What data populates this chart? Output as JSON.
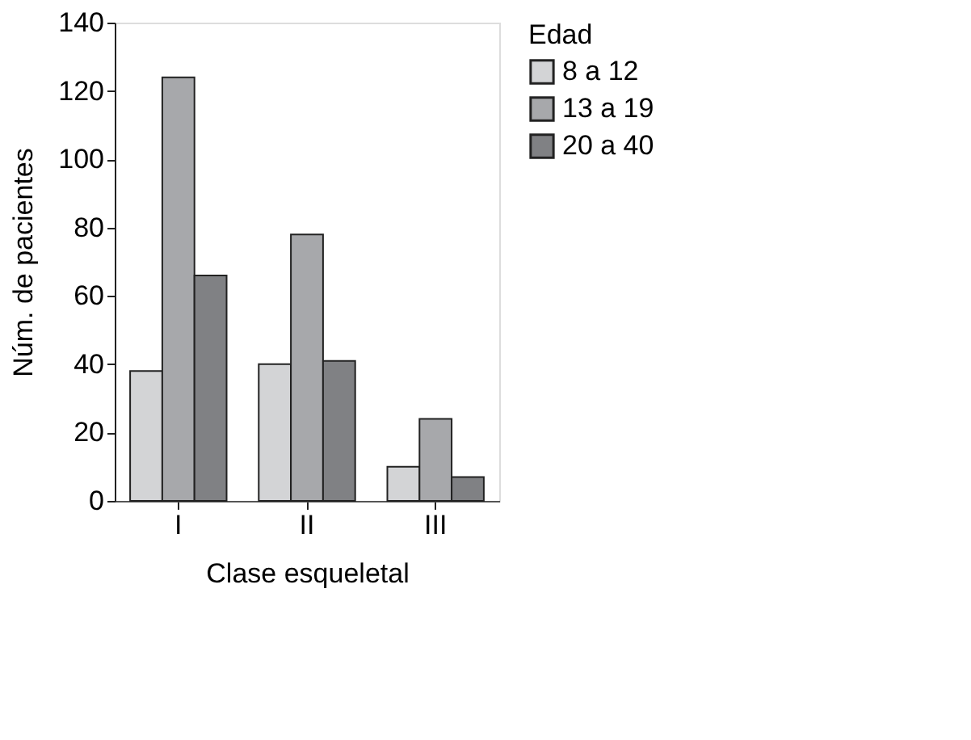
{
  "chart_data": {
    "type": "bar",
    "xlabel": "Clase esqueletal",
    "ylabel": "Núm. de pacientes",
    "legend_title": "Edad",
    "legend": "right",
    "categories": [
      "I",
      "II",
      "III"
    ],
    "series": [
      {
        "name": "8 a 12",
        "color": "#d3d4d6",
        "values": [
          38,
          40,
          10
        ]
      },
      {
        "name": "13 a 19",
        "color": "#a7a8ab",
        "values": [
          124,
          78,
          24
        ]
      },
      {
        "name": "20 a 40",
        "color": "#808184",
        "values": [
          66,
          41,
          7
        ]
      }
    ],
    "ylim": [
      0,
      140
    ],
    "yticks": [
      0,
      20,
      40,
      60,
      80,
      100,
      120,
      140
    ],
    "grid": false
  }
}
